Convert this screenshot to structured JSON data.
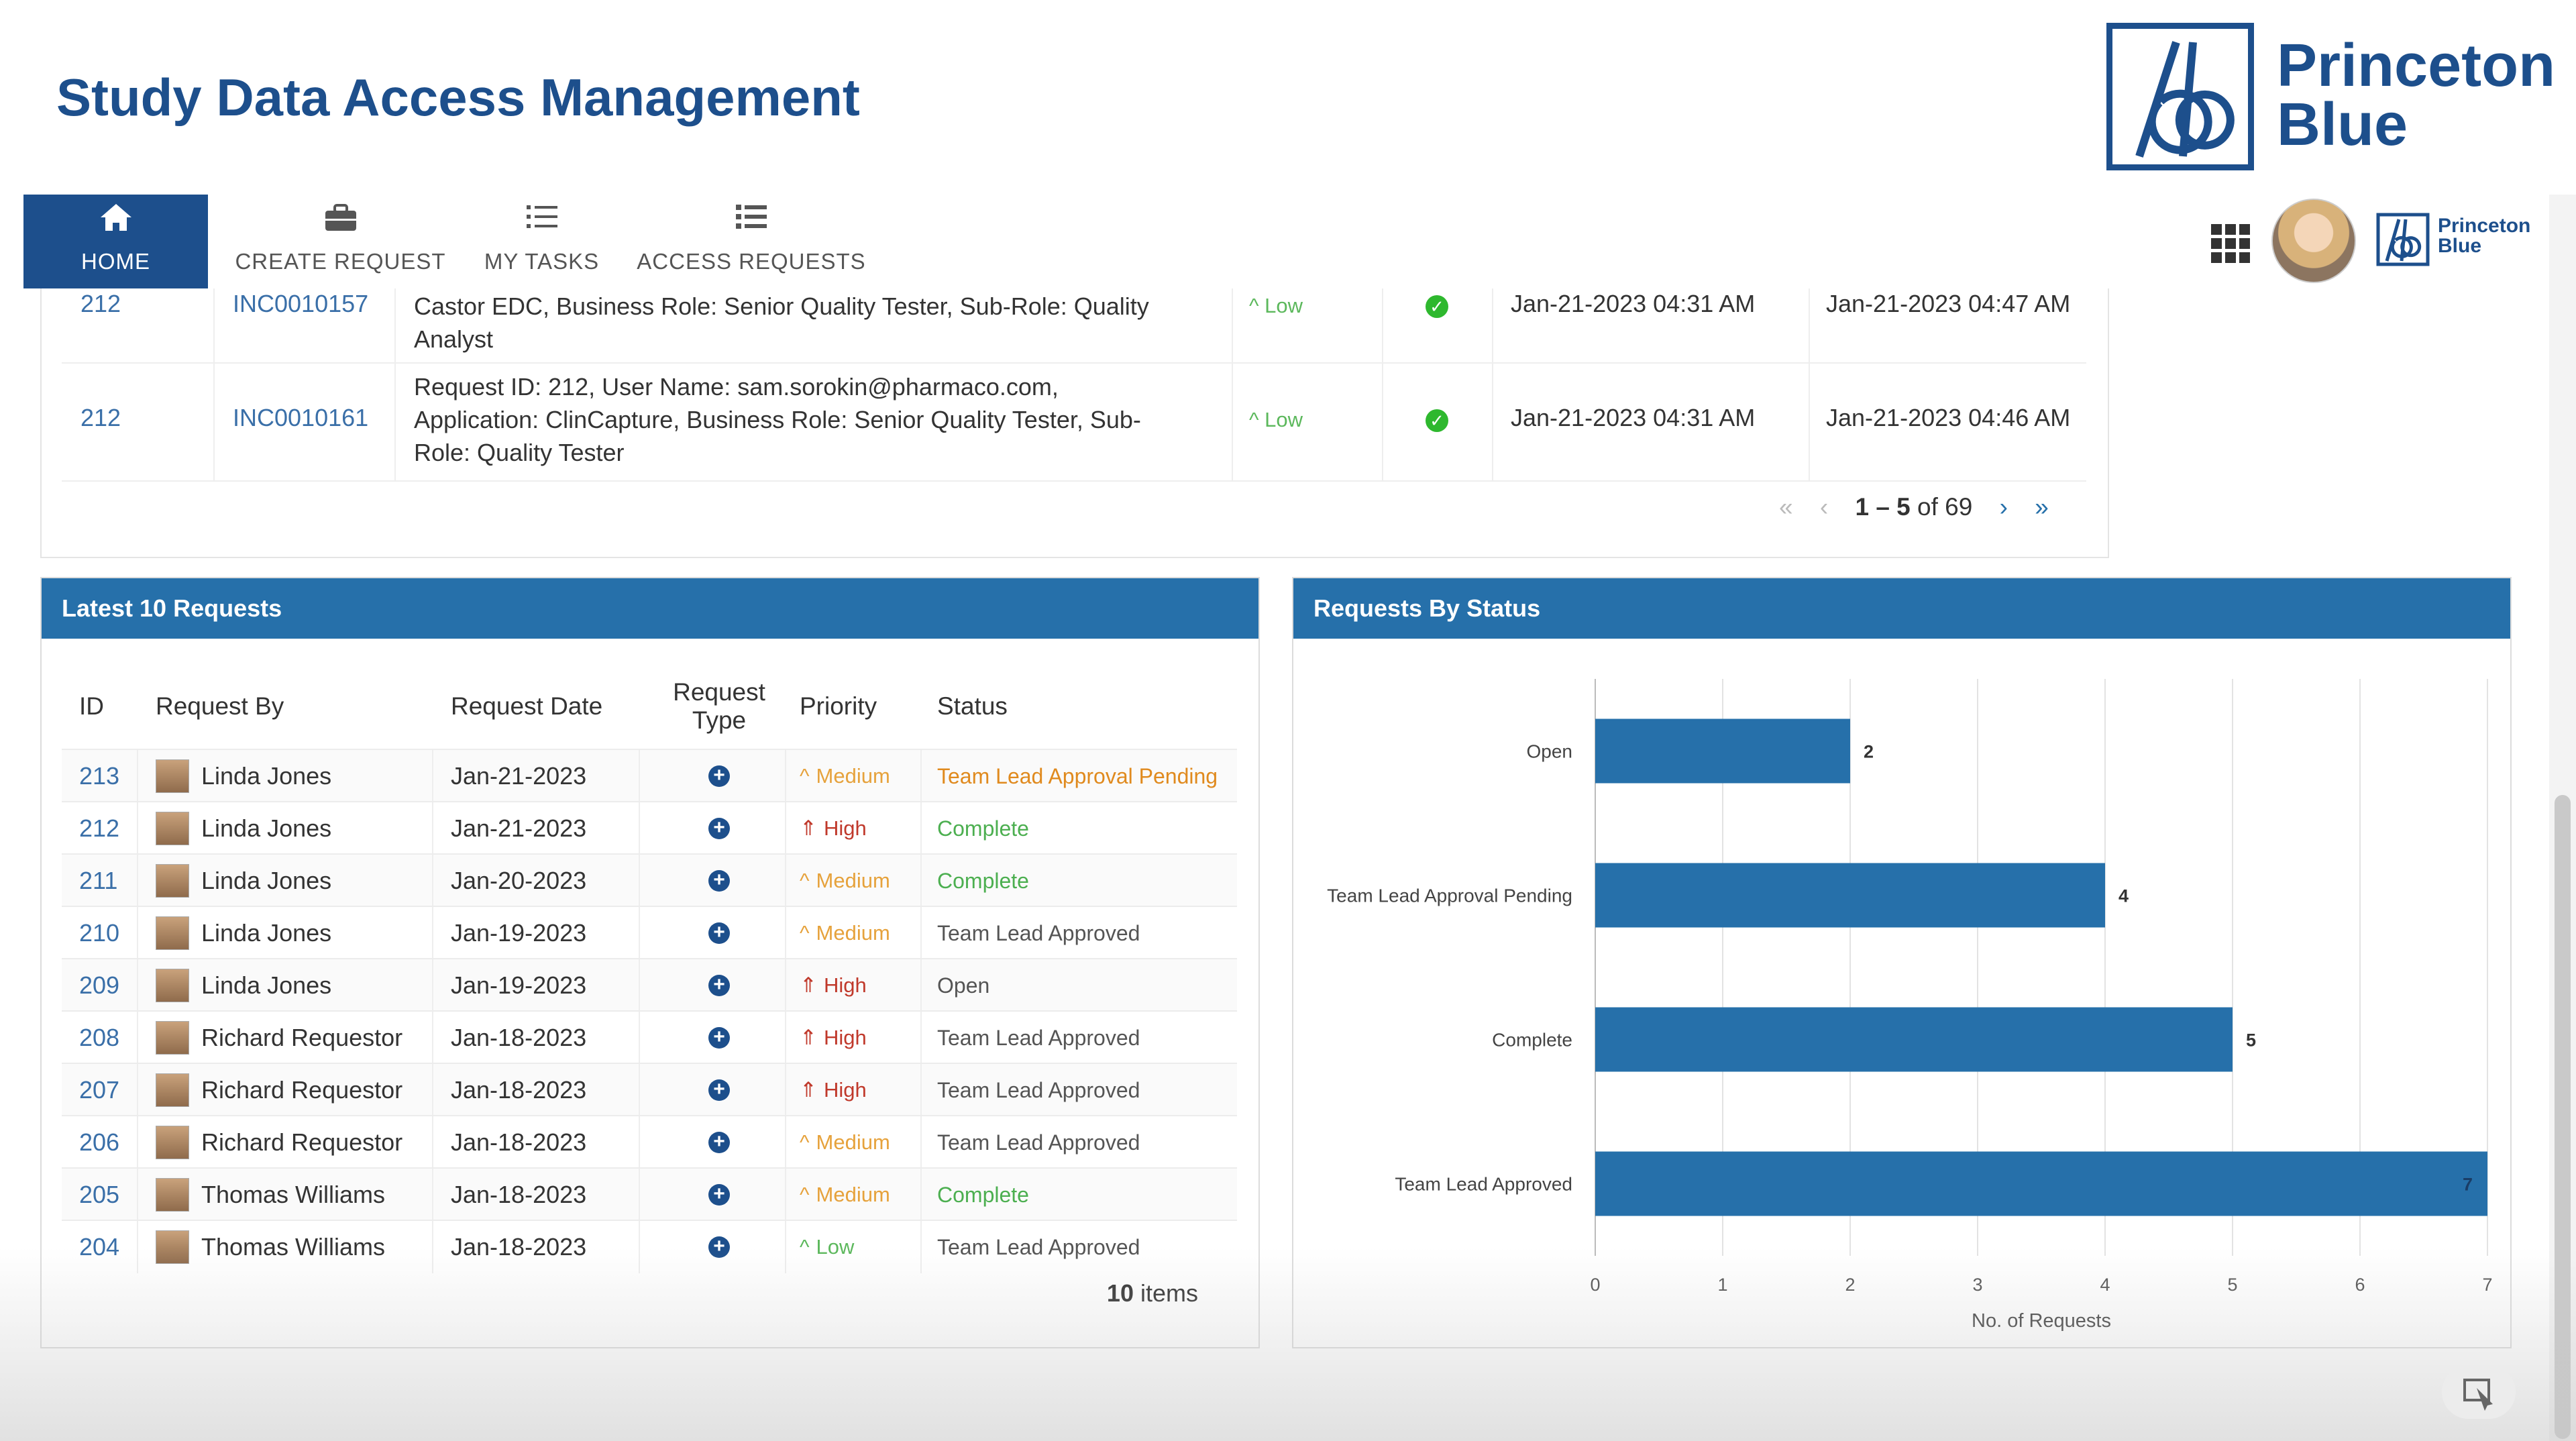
{
  "header": {
    "title": "Study Data Access Management",
    "brand_name_line1": "Princeton",
    "brand_name_line2": "Blue",
    "small_brand_line1": "Princeton",
    "small_brand_line2": "Blue"
  },
  "nav": {
    "home": "HOME",
    "create_request": "CREATE REQUEST",
    "my_tasks": "MY TASKS",
    "access_requests": "ACCESS REQUESTS"
  },
  "incidents": {
    "rows": [
      {
        "id": "212",
        "incident": "INC0010157",
        "details": "Castor EDC, Business Role: Senior Quality Tester, Sub-Role: Quality Analyst",
        "priority": "Low",
        "created": "Jan-21-2023 04:31 AM",
        "resolved": "Jan-21-2023 04:47 AM"
      },
      {
        "id": "212",
        "incident": "INC0010161",
        "details": "Request ID: 212, User Name: sam.sorokin@pharmaco.com, Application: ClinCapture, Business Role: Senior Quality Tester, Sub-Role: Quality Tester",
        "priority": "Low",
        "created": "Jan-21-2023 04:31 AM",
        "resolved": "Jan-21-2023 04:46 AM"
      }
    ],
    "pager_range": "1 – 5",
    "pager_of": "of 69"
  },
  "latest": {
    "title": "Latest 10 Requests",
    "headers": {
      "id": "ID",
      "request_by": "Request By",
      "request_date": "Request Date",
      "request_type_1": "Request",
      "request_type_2": "Type",
      "priority": "Priority",
      "status": "Status"
    },
    "rows": [
      {
        "id": "213",
        "by": "Linda Jones",
        "date": "Jan-21-2023",
        "priority": "Medium",
        "status": "Team Lead Approval Pending"
      },
      {
        "id": "212",
        "by": "Linda Jones",
        "date": "Jan-21-2023",
        "priority": "High",
        "status": "Complete"
      },
      {
        "id": "211",
        "by": "Linda Jones",
        "date": "Jan-20-2023",
        "priority": "Medium",
        "status": "Complete"
      },
      {
        "id": "210",
        "by": "Linda Jones",
        "date": "Jan-19-2023",
        "priority": "Medium",
        "status": "Team Lead Approved"
      },
      {
        "id": "209",
        "by": "Linda Jones",
        "date": "Jan-19-2023",
        "priority": "High",
        "status": "Open"
      },
      {
        "id": "208",
        "by": "Richard Requestor",
        "date": "Jan-18-2023",
        "priority": "High",
        "status": "Team Lead Approved"
      },
      {
        "id": "207",
        "by": "Richard Requestor",
        "date": "Jan-18-2023",
        "priority": "High",
        "status": "Team Lead Approved"
      },
      {
        "id": "206",
        "by": "Richard Requestor",
        "date": "Jan-18-2023",
        "priority": "Medium",
        "status": "Team Lead Approved"
      },
      {
        "id": "205",
        "by": "Thomas Williams",
        "date": "Jan-18-2023",
        "priority": "Medium",
        "status": "Complete"
      },
      {
        "id": "204",
        "by": "Thomas Williams",
        "date": "Jan-18-2023",
        "priority": "Low",
        "status": "Team Lead Approved"
      }
    ],
    "items_count": "10",
    "items_label": "items"
  },
  "status_card": {
    "title": "Requests By Status"
  },
  "chart_data": {
    "type": "bar",
    "orientation": "horizontal",
    "categories": [
      "Open",
      "Team Lead Approval Pending",
      "Complete",
      "Team Lead Approved"
    ],
    "values": [
      2,
      4,
      5,
      7
    ],
    "xlabel": "No. of Requests",
    "xlim": [
      0,
      7
    ],
    "xticks": [
      "0",
      "1",
      "2",
      "3",
      "4",
      "5",
      "6",
      "7"
    ],
    "grid": true,
    "bar_color": "#2670aa"
  },
  "colors": {
    "brand": "#1d4f8c",
    "card_header": "#2670aa",
    "medium": "#e6a23c",
    "high": "#c0392b",
    "low": "#5cb85c"
  }
}
